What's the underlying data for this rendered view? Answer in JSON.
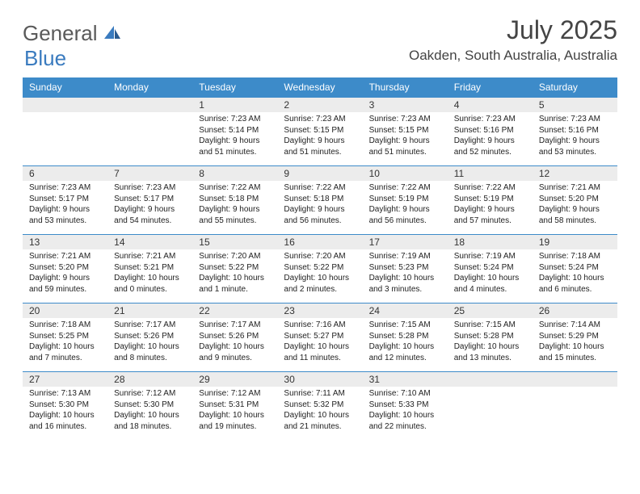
{
  "logo": {
    "text1": "General",
    "text2": "Blue"
  },
  "title": "July 2025",
  "subtitle": "Oakden, South Australia, Australia",
  "colors": {
    "header_bg": "#3d8bc9",
    "header_text": "#ffffff",
    "daynum_bg": "#ececec",
    "border": "#3d8bc9",
    "text": "#222222",
    "title_color": "#444444",
    "logo_gray": "#5a5a5a",
    "logo_blue": "#3a7bbf"
  },
  "weekdays": [
    "Sunday",
    "Monday",
    "Tuesday",
    "Wednesday",
    "Thursday",
    "Friday",
    "Saturday"
  ],
  "weeks": [
    [
      null,
      null,
      {
        "day": "1",
        "sunrise": "Sunrise: 7:23 AM",
        "sunset": "Sunset: 5:14 PM",
        "daylight": "Daylight: 9 hours and 51 minutes."
      },
      {
        "day": "2",
        "sunrise": "Sunrise: 7:23 AM",
        "sunset": "Sunset: 5:15 PM",
        "daylight": "Daylight: 9 hours and 51 minutes."
      },
      {
        "day": "3",
        "sunrise": "Sunrise: 7:23 AM",
        "sunset": "Sunset: 5:15 PM",
        "daylight": "Daylight: 9 hours and 51 minutes."
      },
      {
        "day": "4",
        "sunrise": "Sunrise: 7:23 AM",
        "sunset": "Sunset: 5:16 PM",
        "daylight": "Daylight: 9 hours and 52 minutes."
      },
      {
        "day": "5",
        "sunrise": "Sunrise: 7:23 AM",
        "sunset": "Sunset: 5:16 PM",
        "daylight": "Daylight: 9 hours and 53 minutes."
      }
    ],
    [
      {
        "day": "6",
        "sunrise": "Sunrise: 7:23 AM",
        "sunset": "Sunset: 5:17 PM",
        "daylight": "Daylight: 9 hours and 53 minutes."
      },
      {
        "day": "7",
        "sunrise": "Sunrise: 7:23 AM",
        "sunset": "Sunset: 5:17 PM",
        "daylight": "Daylight: 9 hours and 54 minutes."
      },
      {
        "day": "8",
        "sunrise": "Sunrise: 7:22 AM",
        "sunset": "Sunset: 5:18 PM",
        "daylight": "Daylight: 9 hours and 55 minutes."
      },
      {
        "day": "9",
        "sunrise": "Sunrise: 7:22 AM",
        "sunset": "Sunset: 5:18 PM",
        "daylight": "Daylight: 9 hours and 56 minutes."
      },
      {
        "day": "10",
        "sunrise": "Sunrise: 7:22 AM",
        "sunset": "Sunset: 5:19 PM",
        "daylight": "Daylight: 9 hours and 56 minutes."
      },
      {
        "day": "11",
        "sunrise": "Sunrise: 7:22 AM",
        "sunset": "Sunset: 5:19 PM",
        "daylight": "Daylight: 9 hours and 57 minutes."
      },
      {
        "day": "12",
        "sunrise": "Sunrise: 7:21 AM",
        "sunset": "Sunset: 5:20 PM",
        "daylight": "Daylight: 9 hours and 58 minutes."
      }
    ],
    [
      {
        "day": "13",
        "sunrise": "Sunrise: 7:21 AM",
        "sunset": "Sunset: 5:20 PM",
        "daylight": "Daylight: 9 hours and 59 minutes."
      },
      {
        "day": "14",
        "sunrise": "Sunrise: 7:21 AM",
        "sunset": "Sunset: 5:21 PM",
        "daylight": "Daylight: 10 hours and 0 minutes."
      },
      {
        "day": "15",
        "sunrise": "Sunrise: 7:20 AM",
        "sunset": "Sunset: 5:22 PM",
        "daylight": "Daylight: 10 hours and 1 minute."
      },
      {
        "day": "16",
        "sunrise": "Sunrise: 7:20 AM",
        "sunset": "Sunset: 5:22 PM",
        "daylight": "Daylight: 10 hours and 2 minutes."
      },
      {
        "day": "17",
        "sunrise": "Sunrise: 7:19 AM",
        "sunset": "Sunset: 5:23 PM",
        "daylight": "Daylight: 10 hours and 3 minutes."
      },
      {
        "day": "18",
        "sunrise": "Sunrise: 7:19 AM",
        "sunset": "Sunset: 5:24 PM",
        "daylight": "Daylight: 10 hours and 4 minutes."
      },
      {
        "day": "19",
        "sunrise": "Sunrise: 7:18 AM",
        "sunset": "Sunset: 5:24 PM",
        "daylight": "Daylight: 10 hours and 6 minutes."
      }
    ],
    [
      {
        "day": "20",
        "sunrise": "Sunrise: 7:18 AM",
        "sunset": "Sunset: 5:25 PM",
        "daylight": "Daylight: 10 hours and 7 minutes."
      },
      {
        "day": "21",
        "sunrise": "Sunrise: 7:17 AM",
        "sunset": "Sunset: 5:26 PM",
        "daylight": "Daylight: 10 hours and 8 minutes."
      },
      {
        "day": "22",
        "sunrise": "Sunrise: 7:17 AM",
        "sunset": "Sunset: 5:26 PM",
        "daylight": "Daylight: 10 hours and 9 minutes."
      },
      {
        "day": "23",
        "sunrise": "Sunrise: 7:16 AM",
        "sunset": "Sunset: 5:27 PM",
        "daylight": "Daylight: 10 hours and 11 minutes."
      },
      {
        "day": "24",
        "sunrise": "Sunrise: 7:15 AM",
        "sunset": "Sunset: 5:28 PM",
        "daylight": "Daylight: 10 hours and 12 minutes."
      },
      {
        "day": "25",
        "sunrise": "Sunrise: 7:15 AM",
        "sunset": "Sunset: 5:28 PM",
        "daylight": "Daylight: 10 hours and 13 minutes."
      },
      {
        "day": "26",
        "sunrise": "Sunrise: 7:14 AM",
        "sunset": "Sunset: 5:29 PM",
        "daylight": "Daylight: 10 hours and 15 minutes."
      }
    ],
    [
      {
        "day": "27",
        "sunrise": "Sunrise: 7:13 AM",
        "sunset": "Sunset: 5:30 PM",
        "daylight": "Daylight: 10 hours and 16 minutes."
      },
      {
        "day": "28",
        "sunrise": "Sunrise: 7:12 AM",
        "sunset": "Sunset: 5:30 PM",
        "daylight": "Daylight: 10 hours and 18 minutes."
      },
      {
        "day": "29",
        "sunrise": "Sunrise: 7:12 AM",
        "sunset": "Sunset: 5:31 PM",
        "daylight": "Daylight: 10 hours and 19 minutes."
      },
      {
        "day": "30",
        "sunrise": "Sunrise: 7:11 AM",
        "sunset": "Sunset: 5:32 PM",
        "daylight": "Daylight: 10 hours and 21 minutes."
      },
      {
        "day": "31",
        "sunrise": "Sunrise: 7:10 AM",
        "sunset": "Sunset: 5:33 PM",
        "daylight": "Daylight: 10 hours and 22 minutes."
      },
      null,
      null
    ]
  ]
}
